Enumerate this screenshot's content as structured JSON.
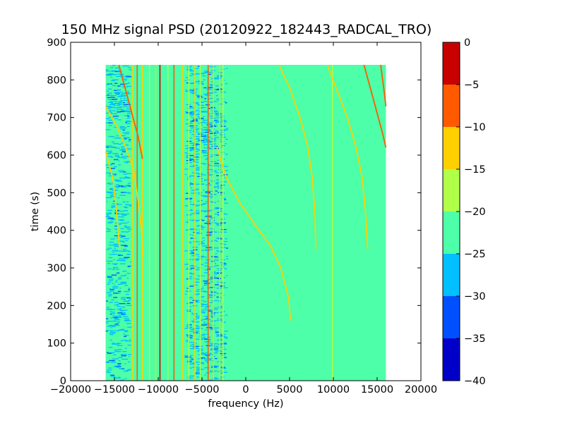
{
  "chart_data": {
    "type": "heatmap",
    "title": "150 MHz signal PSD (20120922_182443_RADCAL_TRO)",
    "xlabel": "frequency (Hz)",
    "ylabel": "time (s)",
    "xlim": [
      -20000,
      20000
    ],
    "ylim": [
      0,
      900
    ],
    "xticks": [
      -20000,
      -15000,
      -10000,
      -5000,
      0,
      5000,
      10000,
      15000,
      20000
    ],
    "yticks": [
      0,
      100,
      200,
      300,
      400,
      500,
      600,
      700,
      800,
      900
    ],
    "data_extent": {
      "x": [
        -16000,
        16000
      ],
      "y": [
        0,
        840
      ]
    },
    "background_level": -22.5,
    "colorbar": {
      "range": [
        -40,
        0
      ],
      "ticks": [
        0,
        -5,
        -10,
        -15,
        -20,
        -25,
        -30,
        -35,
        -40
      ],
      "levels": [
        {
          "range": [
            -40,
            -35
          ],
          "color": "#0000c8"
        },
        {
          "range": [
            -35,
            -30
          ],
          "color": "#0050ff"
        },
        {
          "range": [
            -30,
            -25
          ],
          "color": "#00c0ff"
        },
        {
          "range": [
            -25,
            -20
          ],
          "color": "#4cffa8"
        },
        {
          "range": [
            -20,
            -15
          ],
          "color": "#b0ff48"
        },
        {
          "range": [
            -15,
            -10
          ],
          "color": "#ffd000"
        },
        {
          "range": [
            -10,
            -5
          ],
          "color": "#ff5a00"
        },
        {
          "range": [
            -5,
            0
          ],
          "color": "#c80000"
        }
      ]
    },
    "vertical_lines": [
      {
        "freq": -12900,
        "level": -12
      },
      {
        "freq": -12400,
        "level": -6
      },
      {
        "freq": -11800,
        "level": -12
      },
      {
        "freq": -11000,
        "level": -17
      },
      {
        "freq": -10300,
        "level": -12
      },
      {
        "freq": -9800,
        "level": -3
      },
      {
        "freq": -8900,
        "level": -17
      },
      {
        "freq": -8200,
        "level": -6
      },
      {
        "freq": -7200,
        "level": -12
      },
      {
        "freq": -6500,
        "level": -17
      },
      {
        "freq": -5800,
        "level": -12
      },
      {
        "freq": -5200,
        "level": -17
      },
      {
        "freq": -4300,
        "level": -6
      },
      {
        "freq": -3700,
        "level": -12
      },
      {
        "freq": -3000,
        "level": -12
      },
      {
        "freq": -2600,
        "level": -17
      },
      {
        "freq": 9900,
        "level": -17
      }
    ],
    "noise_bands": [
      {
        "freq": [
          -16000,
          -13000
        ],
        "level": -27
      },
      {
        "freq": [
          -7000,
          -2000
        ],
        "level": -28
      }
    ],
    "drifting_traces": [
      {
        "level": -12,
        "points": [
          [
            -16000,
            610
          ],
          [
            -15200,
            540
          ],
          [
            -14800,
            460
          ],
          [
            -14400,
            350
          ]
        ]
      },
      {
        "level": -12,
        "points": [
          [
            -16000,
            730
          ],
          [
            -14800,
            680
          ],
          [
            -13700,
            620
          ],
          [
            -12800,
            560
          ],
          [
            -12300,
            480
          ],
          [
            -11900,
            400
          ],
          [
            -11700,
            330
          ]
        ]
      },
      {
        "level": -6,
        "points": [
          [
            -14500,
            840
          ],
          [
            -13800,
            780
          ],
          [
            -13000,
            710
          ],
          [
            -12300,
            650
          ],
          [
            -11800,
            590
          ]
        ]
      },
      {
        "level": -12,
        "points": [
          [
            -3300,
            620
          ],
          [
            -2200,
            540
          ],
          [
            -600,
            470
          ],
          [
            1200,
            410
          ],
          [
            2800,
            360
          ],
          [
            4000,
            300
          ],
          [
            4900,
            220
          ],
          [
            5100,
            160
          ]
        ]
      },
      {
        "level": -12,
        "points": [
          [
            3800,
            840
          ],
          [
            5000,
            780
          ],
          [
            6200,
            700
          ],
          [
            7100,
            620
          ],
          [
            7600,
            540
          ],
          [
            7900,
            440
          ],
          [
            8000,
            350
          ]
        ]
      },
      {
        "level": -12,
        "points": [
          [
            9300,
            840
          ],
          [
            10300,
            780
          ],
          [
            11600,
            700
          ],
          [
            12600,
            620
          ],
          [
            13300,
            540
          ],
          [
            13700,
            440
          ],
          [
            13900,
            350
          ]
        ]
      },
      {
        "level": -6,
        "points": [
          [
            13500,
            840
          ],
          [
            14200,
            780
          ],
          [
            14900,
            720
          ],
          [
            15600,
            660
          ],
          [
            16000,
            620
          ]
        ]
      },
      {
        "level": -6,
        "points": [
          [
            15400,
            840
          ],
          [
            15800,
            770
          ],
          [
            16000,
            730
          ]
        ]
      }
    ]
  }
}
